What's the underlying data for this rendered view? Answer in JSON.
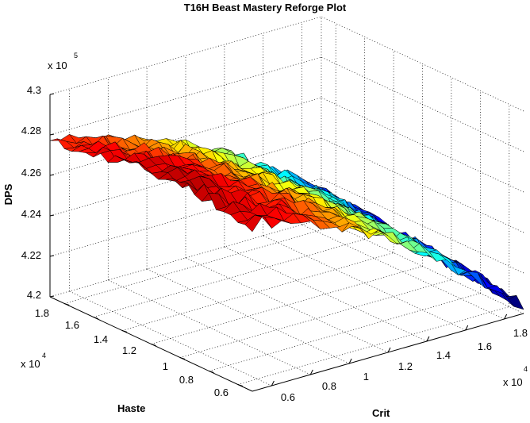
{
  "chart_data": {
    "type": "surface",
    "title": "T16H Beast Mastery Reforge Plot",
    "xlabel": "Crit",
    "ylabel": "Haste",
    "zlabel": "DPS",
    "x_ticks": [
      "0.6",
      "0.8",
      "1",
      "1.2",
      "1.4",
      "1.6",
      "1.8"
    ],
    "y_ticks": [
      "0.6",
      "0.8",
      "1",
      "1.2",
      "1.4",
      "1.6",
      "1.8"
    ],
    "z_ticks": [
      "4.2",
      "4.22",
      "4.24",
      "4.26",
      "4.28",
      "4.3"
    ],
    "x_multiplier": "x 10",
    "x_multiplier_exp": "4",
    "y_multiplier": "x 10",
    "y_multiplier_exp": "4",
    "z_multiplier": "x 10",
    "z_multiplier_exp": "5",
    "xlim": [
      5000,
      19000
    ],
    "ylim": [
      5000,
      19000
    ],
    "zlim": [
      420000,
      430000
    ],
    "grid": true,
    "colormap": "jet",
    "surface_samples": {
      "crit": [
        5000,
        19000,
        5000,
        19000,
        12000
      ],
      "haste": [
        5000,
        5000,
        19000,
        19000,
        12000
      ],
      "dps": [
        427600,
        420500,
        428000,
        421000,
        427200
      ]
    }
  }
}
